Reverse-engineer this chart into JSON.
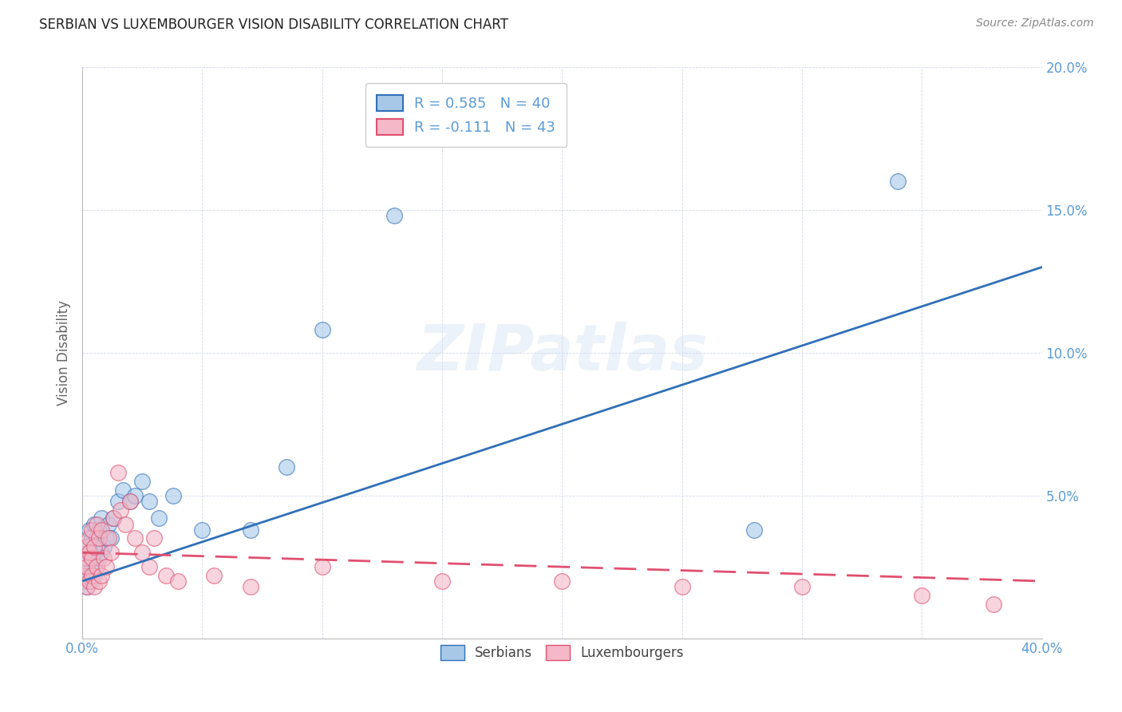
{
  "title": "SERBIAN VS LUXEMBOURGER VISION DISABILITY CORRELATION CHART",
  "source": "Source: ZipAtlas.com",
  "ylabel": "Vision Disability",
  "watermark": "ZIPatlas",
  "xlim": [
    0.0,
    0.4
  ],
  "ylim": [
    0.0,
    0.2
  ],
  "xticks": [
    0.0,
    0.05,
    0.1,
    0.15,
    0.2,
    0.25,
    0.3,
    0.35,
    0.4
  ],
  "yticks": [
    0.0,
    0.05,
    0.1,
    0.15,
    0.2
  ],
  "xticklabels": [
    "0.0%",
    "",
    "",
    "",
    "",
    "",
    "",
    "",
    "40.0%"
  ],
  "yticklabels": [
    "",
    "5.0%",
    "10.0%",
    "15.0%",
    "20.0%"
  ],
  "blue_color": "#a8c8e8",
  "pink_color": "#f4b8c8",
  "blue_line_color": "#3070b8",
  "pink_line_color": "#e05070",
  "tick_color": "#5b9bd5",
  "serbian_x": [
    0.001,
    0.001,
    0.002,
    0.002,
    0.002,
    0.003,
    0.003,
    0.003,
    0.004,
    0.004,
    0.004,
    0.005,
    0.005,
    0.005,
    0.006,
    0.006,
    0.007,
    0.007,
    0.008,
    0.008,
    0.009,
    0.01,
    0.011,
    0.012,
    0.013,
    0.015,
    0.017,
    0.02,
    0.022,
    0.025,
    0.028,
    0.032,
    0.038,
    0.05,
    0.07,
    0.085,
    0.1,
    0.13,
    0.28,
    0.34
  ],
  "serbian_y": [
    0.02,
    0.025,
    0.018,
    0.028,
    0.032,
    0.022,
    0.03,
    0.038,
    0.02,
    0.028,
    0.035,
    0.022,
    0.03,
    0.04,
    0.025,
    0.035,
    0.028,
    0.038,
    0.03,
    0.042,
    0.032,
    0.035,
    0.04,
    0.035,
    0.042,
    0.048,
    0.052,
    0.048,
    0.05,
    0.055,
    0.048,
    0.042,
    0.05,
    0.038,
    0.038,
    0.06,
    0.108,
    0.148,
    0.038,
    0.16
  ],
  "luxembourger_x": [
    0.001,
    0.001,
    0.002,
    0.002,
    0.002,
    0.003,
    0.003,
    0.003,
    0.004,
    0.004,
    0.004,
    0.005,
    0.005,
    0.006,
    0.006,
    0.007,
    0.007,
    0.008,
    0.008,
    0.009,
    0.01,
    0.011,
    0.012,
    0.013,
    0.015,
    0.016,
    0.018,
    0.02,
    0.022,
    0.025,
    0.028,
    0.03,
    0.035,
    0.04,
    0.055,
    0.07,
    0.1,
    0.15,
    0.2,
    0.25,
    0.3,
    0.35,
    0.38
  ],
  "luxembourger_y": [
    0.022,
    0.028,
    0.018,
    0.032,
    0.025,
    0.02,
    0.035,
    0.03,
    0.022,
    0.038,
    0.028,
    0.018,
    0.032,
    0.025,
    0.04,
    0.02,
    0.035,
    0.022,
    0.038,
    0.028,
    0.025,
    0.035,
    0.03,
    0.042,
    0.058,
    0.045,
    0.04,
    0.048,
    0.035,
    0.03,
    0.025,
    0.035,
    0.022,
    0.02,
    0.022,
    0.018,
    0.025,
    0.02,
    0.02,
    0.018,
    0.018,
    0.015,
    0.012
  ],
  "blue_line_x0": 0.0,
  "blue_line_y0": 0.02,
  "blue_line_x1": 0.4,
  "blue_line_y1": 0.13,
  "pink_line_x0": 0.0,
  "pink_line_y0": 0.03,
  "pink_line_x1": 0.4,
  "pink_line_y1": 0.02
}
